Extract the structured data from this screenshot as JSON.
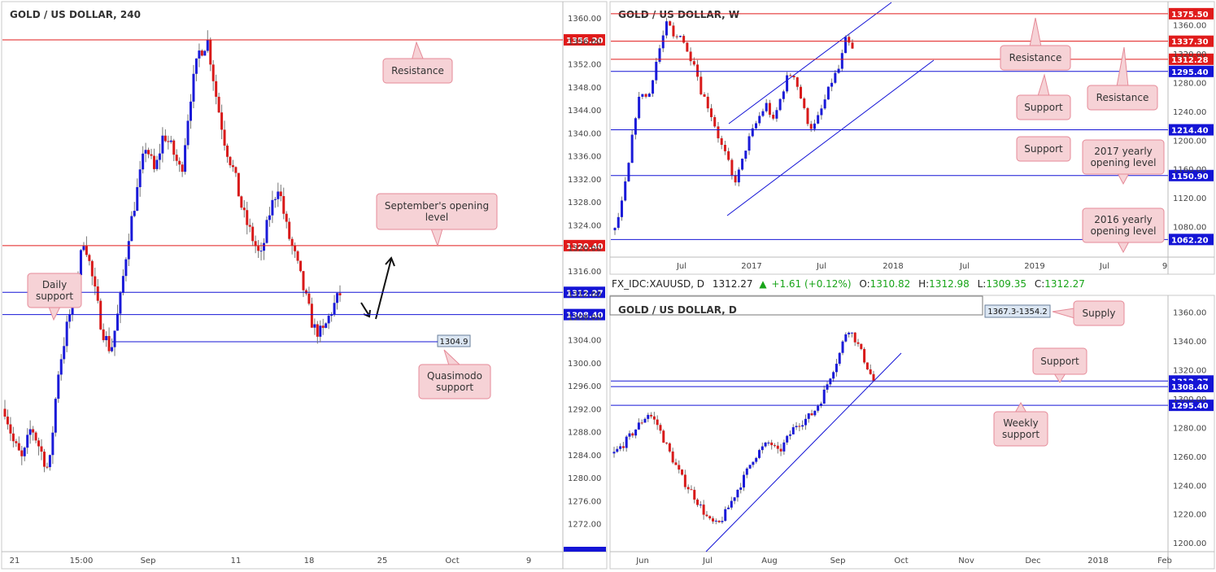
{
  "colors": {
    "red": "#e01b1b",
    "blue": "#1414d6",
    "up": "#1a1ad8",
    "down": "#d81a1a",
    "callout_fill": "#f6d2d6",
    "callout_stroke": "#e58a98"
  },
  "chart_data": [
    {
      "id": "h4",
      "type": "candlestick",
      "title": "GOLD / US DOLLAR, 240",
      "ylim": [
        1268,
        1362
      ],
      "y_ticks": [
        "1360.00",
        "1356.00",
        "1352.00",
        "1348.00",
        "1344.00",
        "1340.00",
        "1336.00",
        "1332.00",
        "1328.00",
        "1324.00",
        "1320.00",
        "1316.00",
        "1312.00",
        "1308.00",
        "1304.00",
        "1300.00",
        "1296.00",
        "1292.00",
        "1288.00",
        "1284.00",
        "1280.00",
        "1276.00",
        "1272.00"
      ],
      "x_ticks": [
        "21",
        "15:00",
        "Sep",
        "11",
        "18",
        "25",
        "Oct",
        "9"
      ],
      "levels": [
        {
          "value": 1356.2,
          "label": "1356.20",
          "color": "red"
        },
        {
          "value": 1320.4,
          "label": "1320.40",
          "color": "red"
        },
        {
          "value": 1312.27,
          "label": "1312.27",
          "color": "blue"
        },
        {
          "value": 1308.4,
          "label": "1308.40",
          "color": "blue"
        }
      ],
      "box_label": "1304.9",
      "annotations": [
        "Resistance",
        "September's opening level",
        "Daily support",
        "Quasimodo support"
      ],
      "path": [
        1292,
        1286,
        1283,
        1289,
        1285,
        1281,
        1298,
        1306,
        1313,
        1322,
        1314,
        1306,
        1302,
        1310,
        1322,
        1330,
        1338,
        1333,
        1340,
        1337,
        1333,
        1346,
        1354,
        1356,
        1346,
        1338,
        1333,
        1326,
        1322,
        1318,
        1326,
        1331,
        1323,
        1318,
        1312,
        1306,
        1305,
        1309,
        1312
      ]
    },
    {
      "id": "w",
      "type": "candlestick",
      "title": "GOLD / US DOLLAR, W",
      "ylim": [
        1040,
        1390
      ],
      "y_ticks": [
        "1360.00",
        "1320.00",
        "1280.00",
        "1240.00",
        "1200.00",
        "1160.00",
        "1120.00",
        "1080.00"
      ],
      "x_ticks": [
        "Jul",
        "2017",
        "Jul",
        "2018",
        "Jul",
        "2019",
        "Jul",
        "9"
      ],
      "levels": [
        {
          "value": 1375.5,
          "label": "1375.50",
          "color": "red"
        },
        {
          "value": 1337.3,
          "label": "1337.30",
          "color": "red"
        },
        {
          "value": 1312.28,
          "label": "1312.28",
          "color": "red"
        },
        {
          "value": 1295.4,
          "label": "1295.40",
          "color": "blue"
        },
        {
          "value": 1214.4,
          "label": "1214.40",
          "color": "blue"
        },
        {
          "value": 1150.9,
          "label": "1150.90",
          "color": "blue"
        },
        {
          "value": 1062.2,
          "label": "1062.20",
          "color": "blue"
        }
      ],
      "annotations": [
        "Resistance",
        "Resistance",
        "Support",
        "Support",
        "2017 yearly opening level",
        "2016 yearly opening level"
      ],
      "path": [
        1075,
        1110,
        1160,
        1230,
        1270,
        1255,
        1300,
        1335,
        1365,
        1338,
        1350,
        1320,
        1310,
        1270,
        1250,
        1225,
        1195,
        1175,
        1140,
        1160,
        1195,
        1215,
        1235,
        1250,
        1225,
        1255,
        1285,
        1295,
        1265,
        1230,
        1215,
        1235,
        1260,
        1285,
        1300,
        1340,
        1325
      ]
    },
    {
      "id": "d",
      "type": "candlestick",
      "title": "GOLD / US DOLLAR, D",
      "ylim": [
        1195,
        1370
      ],
      "y_ticks": [
        "1360.00",
        "1340.00",
        "1320.00",
        "1300.00",
        "1280.00",
        "1260.00",
        "1240.00",
        "1220.00",
        "1200.00"
      ],
      "x_ticks": [
        "Jun",
        "Jul",
        "Aug",
        "Sep",
        "Oct",
        "Nov",
        "Dec",
        "2018",
        "Feb"
      ],
      "levels": [
        {
          "value": 1312.27,
          "label": "1312.27",
          "color": "blue"
        },
        {
          "value": 1308.4,
          "label": "1308.40",
          "color": "blue"
        },
        {
          "value": 1295.4,
          "label": "1295.40",
          "color": "blue"
        }
      ],
      "box_label": "1367.3-1354.2",
      "annotations": [
        "Supply",
        "Support",
        "Weekly support"
      ],
      "path": [
        1262,
        1268,
        1275,
        1283,
        1290,
        1282,
        1268,
        1255,
        1243,
        1235,
        1225,
        1215,
        1212,
        1222,
        1234,
        1245,
        1258,
        1265,
        1270,
        1262,
        1272,
        1282,
        1285,
        1290,
        1300,
        1316,
        1330,
        1350,
        1340,
        1326,
        1312
      ]
    }
  ],
  "info_bar": {
    "symbol": "FX_IDC:XAUUSD, D",
    "price": "1312.27",
    "change": "+1.61 (+0.12%)",
    "o_label": "O:",
    "o": "1310.82",
    "h_label": "H:",
    "h": "1312.98",
    "l_label": "L:",
    "l": "1309.35",
    "c_label": "C:",
    "c": "1312.27"
  }
}
